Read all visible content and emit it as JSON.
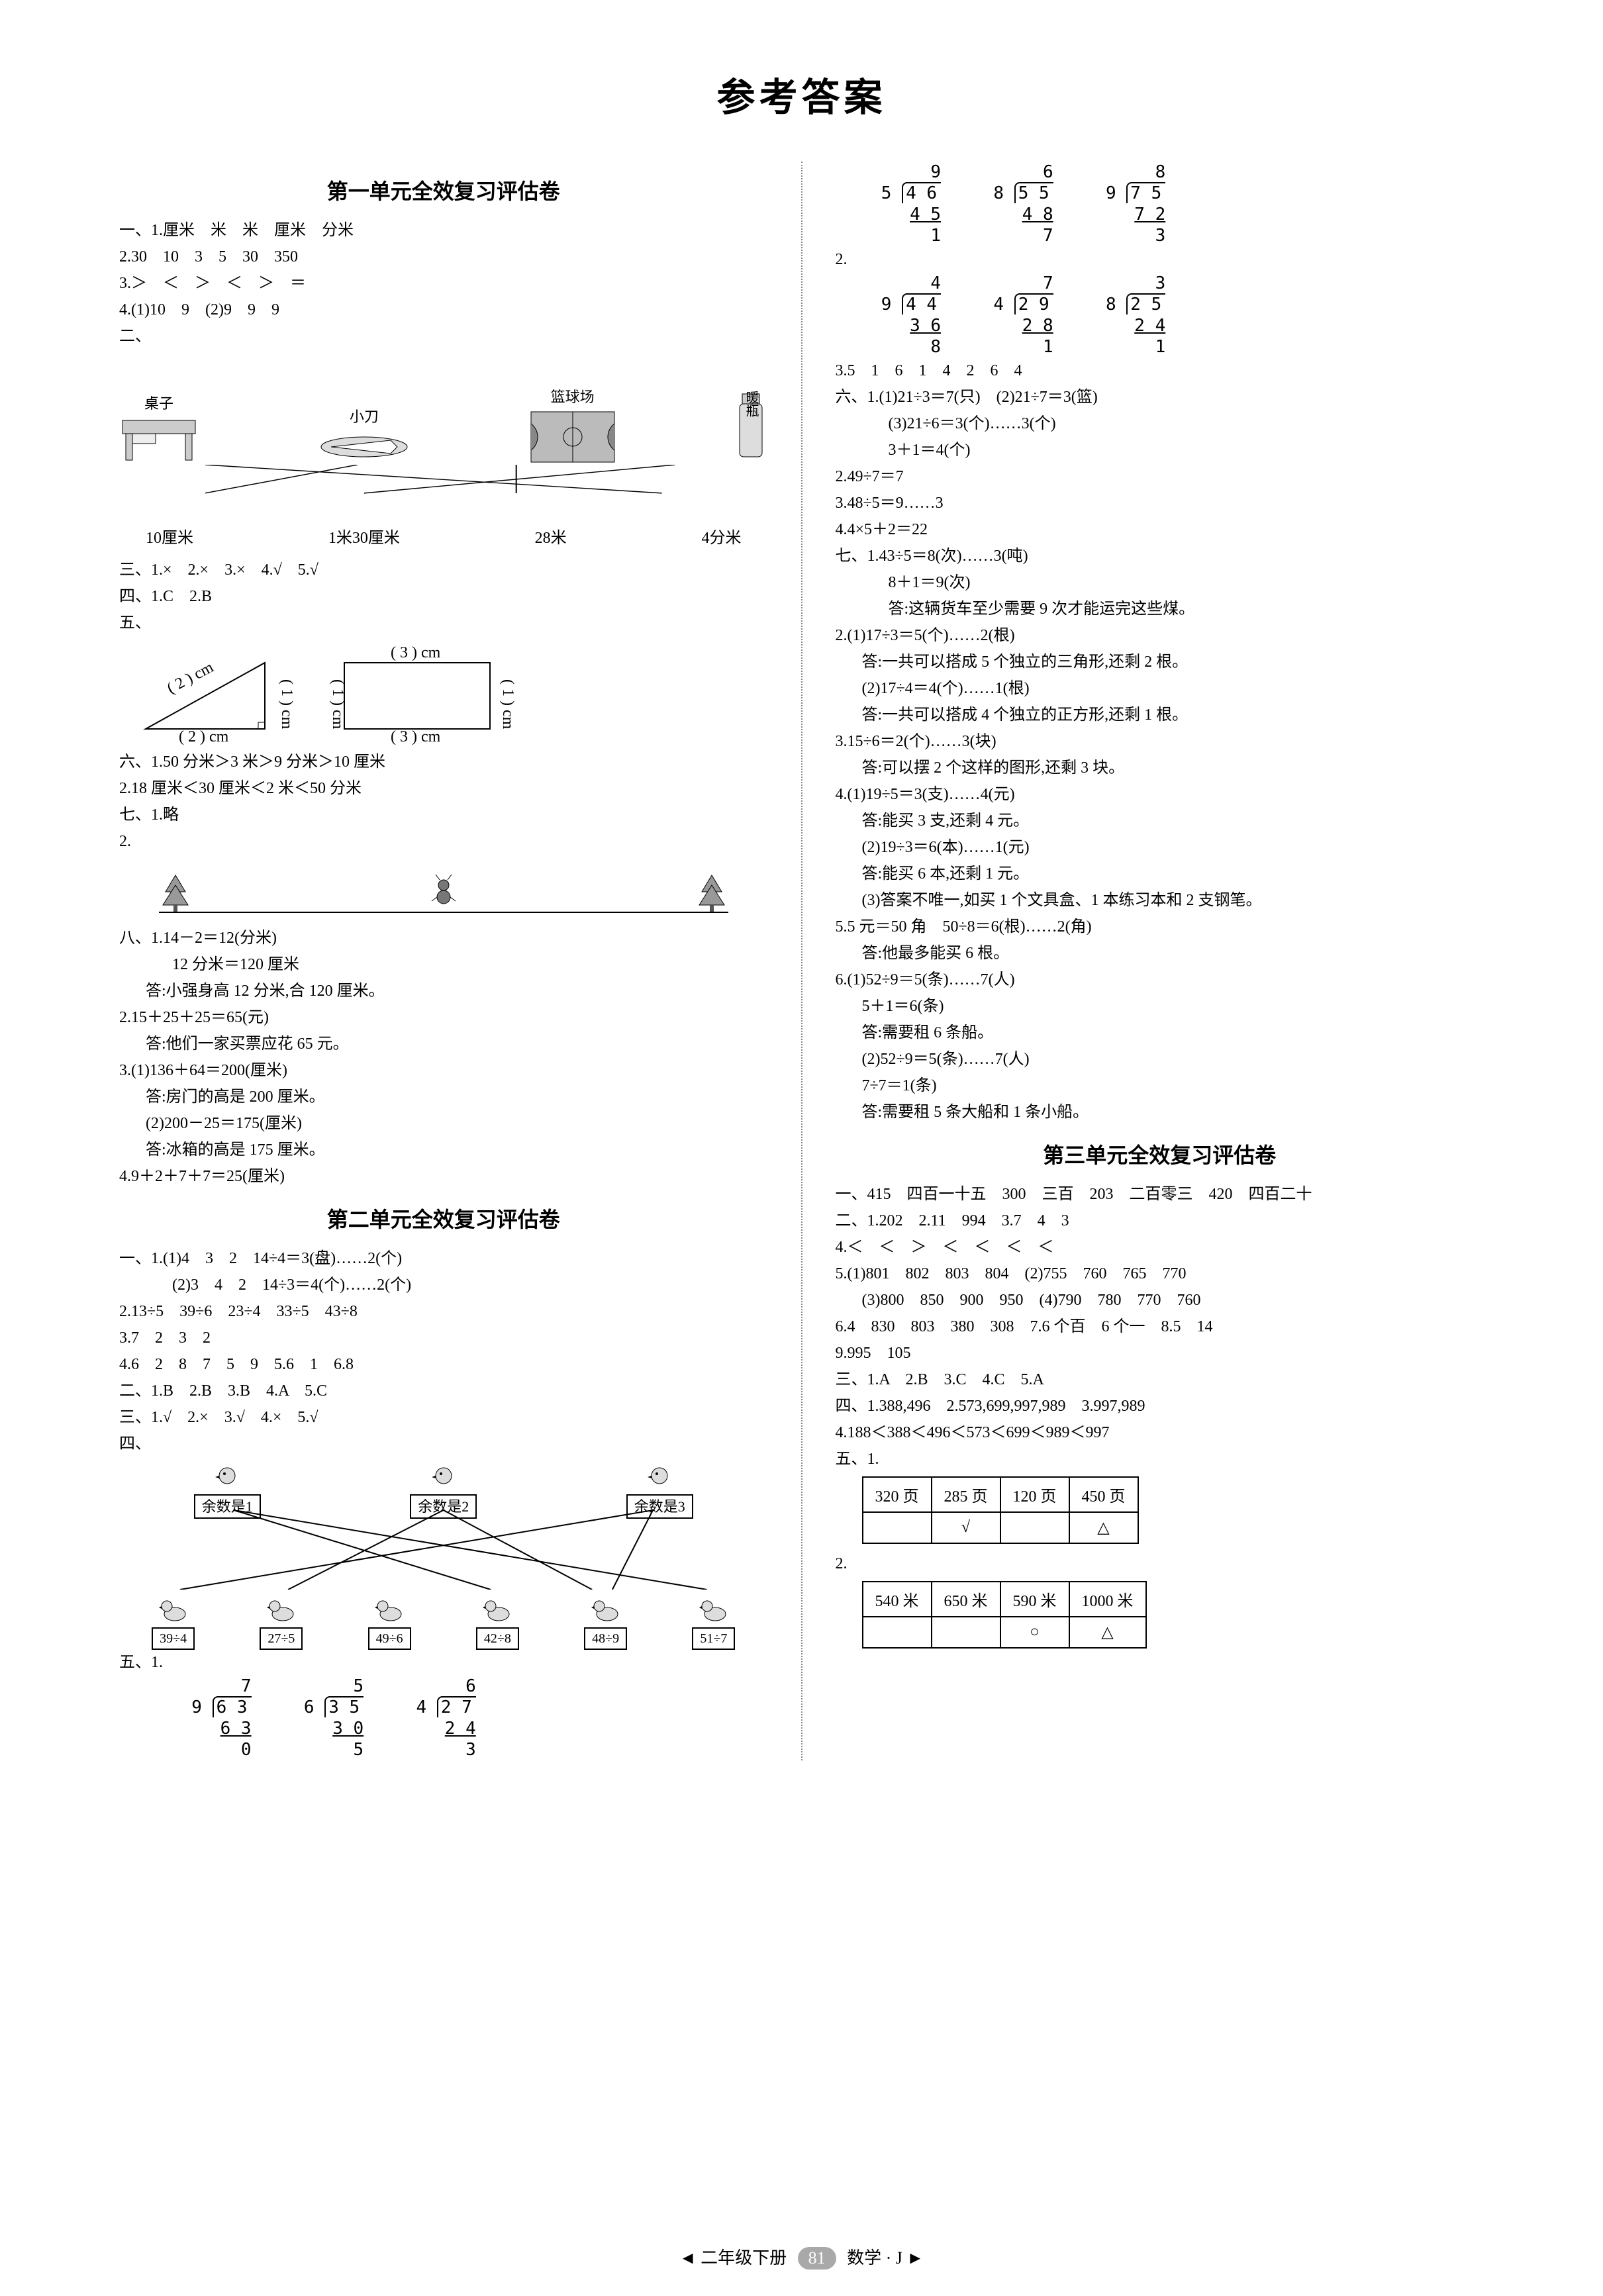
{
  "title": "参考答案",
  "footer": {
    "left": "◄ 二年级下册",
    "page": "81",
    "right": "数学 · J ►"
  },
  "unit1": {
    "title": "第一单元全效复习评估卷",
    "q1_1": "一、1.厘米　米　米　厘米　分米",
    "q1_2": "2.30　10　3　5　30　350",
    "q1_3": "3.＞　＜　＞　＜　＞　＝",
    "q1_4": "4.(1)10　9　(2)9　9　9",
    "q2_head": "二、",
    "fig": {
      "labels_top": [
        "桌子",
        "小刀",
        "篮球场",
        ""
      ],
      "labels_bottom": [
        "10厘米",
        "1米30厘米",
        "28米",
        "4分米"
      ],
      "thermos": "暖瓶"
    },
    "q3": "三、1.×　2.×　3.×　4.√　5.√",
    "q4": "四、1.C　2.B",
    "q5_head": "五、",
    "shapes": {
      "tri_hyp": "( 2 ) cm",
      "tri_h": "( 1 ) cm",
      "tri_base": "( 2 ) cm",
      "rect_top": "( 3 ) cm",
      "rect_right": "( 1 ) cm",
      "rect_bottom": "( 3 ) cm",
      "rect_right2": "( 1 ) cm"
    },
    "q6_1": "六、1.50 分米＞3 米＞9 分米＞10 厘米",
    "q6_2": "2.18 厘米＜30 厘米＜2 米＜50 分米",
    "q7_1": "七、1.略",
    "q7_2": "2.",
    "q8_1": "八、1.14－2＝12(分米)",
    "q8_1b": "12 分米＝120 厘米",
    "q8_1c": "答:小强身高 12 分米,合 120 厘米。",
    "q8_2": "2.15＋25＋25＝65(元)",
    "q8_2b": "答:他们一家买票应花 65 元。",
    "q8_3": "3.(1)136＋64＝200(厘米)",
    "q8_3b": "答:房门的高是 200 厘米。",
    "q8_3c": "(2)200－25＝175(厘米)",
    "q8_3d": "答:冰箱的高是 175 厘米。",
    "q8_4": "4.9＋2＋7＋7＝25(厘米)"
  },
  "unit2": {
    "title": "第二单元全效复习评估卷",
    "q1_1": "一、1.(1)4　3　2　14÷4＝3(盘)……2(个)",
    "q1_1b": "(2)3　4　2　14÷3＝4(个)……2(个)",
    "q1_2": "2.13÷5　39÷6　23÷4　33÷5　43÷8",
    "q1_3": "3.7　2　3　2",
    "q1_4": "4.6　2　8　7　5　9　5.6　1　6.8",
    "q2": "二、1.B　2.B　3.B　4.A　5.C",
    "q3": "三、1.√　2.×　3.√　4.×　5.√",
    "q4_head": "四、",
    "remG": {
      "top": [
        "余数是1",
        "余数是2",
        "余数是3"
      ],
      "bottom": [
        "39÷4",
        "27÷5",
        "49÷6",
        "42÷8",
        "48÷9",
        "51÷7"
      ]
    },
    "q5_head": "五、1.",
    "ld1": [
      {
        "q": "7",
        "d": "9",
        "n": "6 3",
        "s": "6 3",
        "r": "0"
      },
      {
        "q": "5",
        "d": "6",
        "n": "3 5",
        "s": "3 0",
        "r": "5"
      },
      {
        "q": "6",
        "d": "4",
        "n": "2 7",
        "s": "2 4",
        "r": "3"
      }
    ],
    "ld2": [
      {
        "q": "9",
        "d": "5",
        "n": "4 6",
        "s": "4 5",
        "r": "1"
      },
      {
        "q": "6",
        "d": "8",
        "n": "5 5",
        "s": "4 8",
        "r": "7"
      },
      {
        "q": "8",
        "d": "9",
        "n": "7 5",
        "s": "7 2",
        "r": "3"
      }
    ],
    "q5_2": "2.",
    "ld3": [
      {
        "q": "4",
        "d": "9",
        "n": "4 4",
        "s": "3 6",
        "r": "8"
      },
      {
        "q": "7",
        "d": "4",
        "n": "2 9",
        "s": "2 8",
        "r": "1"
      },
      {
        "q": "3",
        "d": "8",
        "n": "2 5",
        "s": "2 4",
        "r": "1"
      }
    ],
    "q5_3": "3.5　1　6　1　4　2　6　4",
    "q6_1": "六、1.(1)21÷3＝7(只)　(2)21÷7＝3(篮)",
    "q6_1b": "(3)21÷6＝3(个)……3(个)",
    "q6_1c": "3＋1＝4(个)",
    "q6_2": "2.49÷7＝7",
    "q6_3": "3.48÷5＝9……3",
    "q6_4": "4.4×5＋2＝22",
    "q7_1": "七、1.43÷5＝8(次)……3(吨)",
    "q7_1b": "8＋1＝9(次)",
    "q7_1c": "答:这辆货车至少需要 9 次才能运完这些煤。",
    "q7_2": "2.(1)17÷3＝5(个)……2(根)",
    "q7_2b": "答:一共可以搭成 5 个独立的三角形,还剩 2 根。",
    "q7_2c": "(2)17÷4＝4(个)……1(根)",
    "q7_2d": "答:一共可以搭成 4 个独立的正方形,还剩 1 根。",
    "q7_3": "3.15÷6＝2(个)……3(块)",
    "q7_3b": "答:可以摆 2 个这样的图形,还剩 3 块。",
    "q7_4": "4.(1)19÷5＝3(支)……4(元)",
    "q7_4b": "答:能买 3 支,还剩 4 元。",
    "q7_4c": "(2)19÷3＝6(本)……1(元)",
    "q7_4d": "答:能买 6 本,还剩 1 元。",
    "q7_4e": "(3)答案不唯一,如买 1 个文具盒、1 本练习本和 2 支钢笔。",
    "q7_5": "5.5 元＝50 角　50÷8＝6(根)……2(角)",
    "q7_5b": "答:他最多能买 6 根。",
    "q7_6": "6.(1)52÷9＝5(条)……7(人)",
    "q7_6b": "5＋1＝6(条)",
    "q7_6c": "答:需要租 6 条船。",
    "q7_6d": "(2)52÷9＝5(条)……7(人)",
    "q7_6e": "7÷7＝1(条)",
    "q7_6f": "答:需要租 5 条大船和 1 条小船。"
  },
  "unit3": {
    "title": "第三单元全效复习评估卷",
    "q1": "一、415　四百一十五　300　三百　203　二百零三　420　四百二十",
    "q2": "二、1.202　2.11　994　3.7　4　3",
    "q4": "4.＜　＜　＞　＜　＜　＜　＜",
    "q5a": "5.(1)801　802　803　804　(2)755　760　765　770",
    "q5b": "(3)800　850　900　950　(4)790　780　770　760",
    "q6": "6.4　830　803　380　308　7.6 个百　6 个一　8.5　14",
    "q9": "9.995　105",
    "q3": "三、1.A　2.B　3.C　4.C　5.A",
    "q4x": "四、1.388,496　2.573,699,997,989　3.997,989",
    "q4x2": "4.188＜388＜496＜573＜699＜989＜997",
    "q5h": "五、1.",
    "t1": {
      "r1": [
        "320 页",
        "285 页",
        "120 页",
        "450 页"
      ],
      "r2": [
        "",
        "√",
        "",
        "△"
      ]
    },
    "q5_2": "2.",
    "t2": {
      "r1": [
        "540 米",
        "650 米",
        "590 米",
        "1000 米"
      ],
      "r2": [
        "",
        "",
        "○",
        "△"
      ]
    }
  }
}
